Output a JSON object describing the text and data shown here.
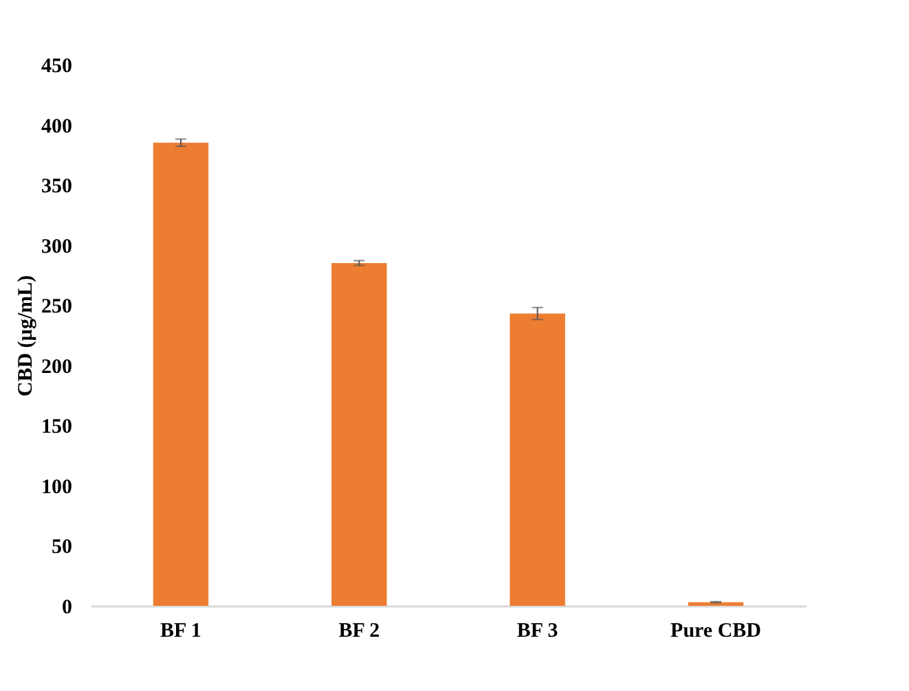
{
  "chart_data": {
    "type": "bar",
    "ylabel": "CBD (µg/mL)",
    "categories": [
      "BF 1",
      "BF 2",
      "BF 3",
      "Pure CBD"
    ],
    "values": [
      385,
      285,
      243,
      3
    ],
    "errors": [
      3,
      2,
      5,
      0.5
    ],
    "color": "#ed7d31",
    "ylim": [
      0,
      450
    ],
    "yticks": [
      0,
      50,
      100,
      150,
      200,
      250,
      300,
      350,
      400,
      450
    ],
    "grid": false
  }
}
